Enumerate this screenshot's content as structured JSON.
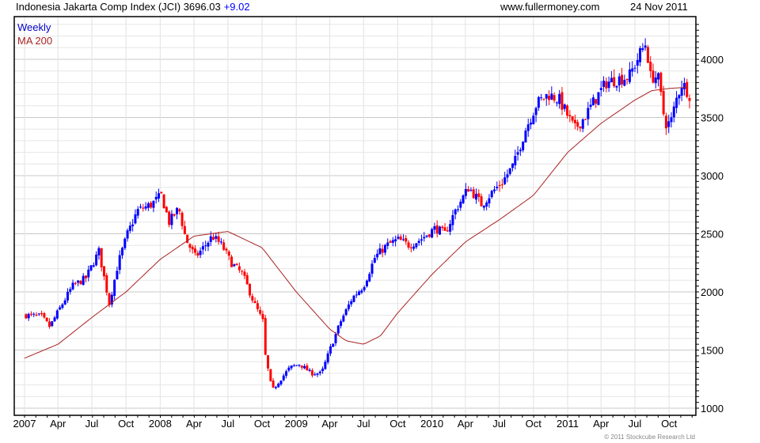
{
  "header": {
    "title": "Indonesia Jakarta Comp Index (JCI) 3696.03",
    "change": "+9.02",
    "website": "www.fullermoney.com",
    "date": "24 Nov 2011"
  },
  "copyright": "© 2011 Stockcube Research Ltd",
  "colors": {
    "up": "#0000ff",
    "down": "#ff0000",
    "ma": "#aa2222",
    "grid_major": "#c8c8c8",
    "grid_minor": "#e6e6e6"
  },
  "chart_data": {
    "type": "candlestick",
    "title": "Indonesia Jakarta Comp Index (JCI)",
    "legend": [
      "Weekly",
      "MA 200"
    ],
    "legend_placement": "top-left",
    "ylim": [
      950,
      4300
    ],
    "yticks": [
      "1000",
      "1500",
      "2000",
      "2500",
      "3000",
      "3500",
      "4000"
    ],
    "xticks": [
      {
        "label": "2007",
        "date": "2007-01-01"
      },
      {
        "label": "Apr",
        "date": "2007-04-01"
      },
      {
        "label": "Jul",
        "date": "2007-07-01"
      },
      {
        "label": "Oct",
        "date": "2007-10-01"
      },
      {
        "label": "2008",
        "date": "2008-01-01"
      },
      {
        "label": "Apr",
        "date": "2008-04-01"
      },
      {
        "label": "Jul",
        "date": "2008-07-01"
      },
      {
        "label": "Oct",
        "date": "2008-10-01"
      },
      {
        "label": "2009",
        "date": "2009-01-01"
      },
      {
        "label": "Apr",
        "date": "2009-04-01"
      },
      {
        "label": "Jul",
        "date": "2009-07-01"
      },
      {
        "label": "Oct",
        "date": "2009-10-01"
      },
      {
        "label": "2010",
        "date": "2010-01-01"
      },
      {
        "label": "Apr",
        "date": "2010-04-01"
      },
      {
        "label": "Jul",
        "date": "2010-07-01"
      },
      {
        "label": "Oct",
        "date": "2010-10-01"
      },
      {
        "label": "2011",
        "date": "2011-01-01"
      },
      {
        "label": "Apr",
        "date": "2011-04-01"
      },
      {
        "label": "Jul",
        "date": "2011-07-01"
      },
      {
        "label": "Oct",
        "date": "2011-10-01"
      }
    ],
    "weekly_close_approx": [
      [
        "2007-01-05",
        1800
      ],
      [
        "2007-02-15",
        1790
      ],
      [
        "2007-03-10",
        1700
      ],
      [
        "2007-04-01",
        1830
      ],
      [
        "2007-05-10",
        2050
      ],
      [
        "2007-06-15",
        2120
      ],
      [
        "2007-07-20",
        2350
      ],
      [
        "2007-08-17",
        1900
      ],
      [
        "2007-09-10",
        2250
      ],
      [
        "2007-10-05",
        2500
      ],
      [
        "2007-11-01",
        2700
      ],
      [
        "2007-12-07",
        2750
      ],
      [
        "2008-01-04",
        2830
      ],
      [
        "2008-01-25",
        2600
      ],
      [
        "2008-02-20",
        2720
      ],
      [
        "2008-03-10",
        2450
      ],
      [
        "2008-04-05",
        2300
      ],
      [
        "2008-05-01",
        2400
      ],
      [
        "2008-05-20",
        2480
      ],
      [
        "2008-06-15",
        2400
      ],
      [
        "2008-07-10",
        2250
      ],
      [
        "2008-08-10",
        2150
      ],
      [
        "2008-09-10",
        1900
      ],
      [
        "2008-10-03",
        1750
      ],
      [
        "2008-10-10",
        1450
      ],
      [
        "2008-10-28",
        1150
      ],
      [
        "2008-11-20",
        1250
      ],
      [
        "2008-12-15",
        1350
      ],
      [
        "2009-01-10",
        1380
      ],
      [
        "2009-02-10",
        1300
      ],
      [
        "2009-03-10",
        1300
      ],
      [
        "2009-04-01",
        1500
      ],
      [
        "2009-05-01",
        1750
      ],
      [
        "2009-06-01",
        1950
      ],
      [
        "2009-07-01",
        2050
      ],
      [
        "2009-08-01",
        2300
      ],
      [
        "2009-09-01",
        2400
      ],
      [
        "2009-10-01",
        2450
      ],
      [
        "2009-11-01",
        2400
      ],
      [
        "2009-12-01",
        2450
      ],
      [
        "2010-01-10",
        2550
      ],
      [
        "2010-02-05",
        2500
      ],
      [
        "2010-03-05",
        2700
      ],
      [
        "2010-04-10",
        2900
      ],
      [
        "2010-05-15",
        2750
      ],
      [
        "2010-06-10",
        2850
      ],
      [
        "2010-07-10",
        2950
      ],
      [
        "2010-08-10",
        3100
      ],
      [
        "2010-09-10",
        3400
      ],
      [
        "2010-10-10",
        3620
      ],
      [
        "2010-11-10",
        3700
      ],
      [
        "2010-12-10",
        3650
      ],
      [
        "2011-01-20",
        3400
      ],
      [
        "2011-02-15",
        3500
      ],
      [
        "2011-03-15",
        3650
      ],
      [
        "2011-04-15",
        3800
      ],
      [
        "2011-05-15",
        3830
      ],
      [
        "2011-06-15",
        3850
      ],
      [
        "2011-07-15",
        4050
      ],
      [
        "2011-08-01",
        4150
      ],
      [
        "2011-08-10",
        3850
      ],
      [
        "2011-09-01",
        3850
      ],
      [
        "2011-09-20",
        3450
      ],
      [
        "2011-10-05",
        3450
      ],
      [
        "2011-10-20",
        3650
      ],
      [
        "2011-11-05",
        3800
      ],
      [
        "2011-11-25",
        3696
      ]
    ],
    "ma200_approx": [
      [
        "2007-01-01",
        1430
      ],
      [
        "2007-04-01",
        1550
      ],
      [
        "2007-07-01",
        1780
      ],
      [
        "2007-10-01",
        2000
      ],
      [
        "2008-01-01",
        2280
      ],
      [
        "2008-04-01",
        2480
      ],
      [
        "2008-07-01",
        2520
      ],
      [
        "2008-10-01",
        2380
      ],
      [
        "2009-01-01",
        2000
      ],
      [
        "2009-04-01",
        1680
      ],
      [
        "2009-05-15",
        1580
      ],
      [
        "2009-07-01",
        1550
      ],
      [
        "2009-08-15",
        1620
      ],
      [
        "2009-10-01",
        1820
      ],
      [
        "2010-01-01",
        2150
      ],
      [
        "2010-04-01",
        2430
      ],
      [
        "2010-07-01",
        2620
      ],
      [
        "2010-10-01",
        2830
      ],
      [
        "2011-01-01",
        3200
      ],
      [
        "2011-04-01",
        3450
      ],
      [
        "2011-07-01",
        3650
      ],
      [
        "2011-08-15",
        3730
      ],
      [
        "2011-10-01",
        3750
      ],
      [
        "2011-11-25",
        3760
      ]
    ]
  }
}
